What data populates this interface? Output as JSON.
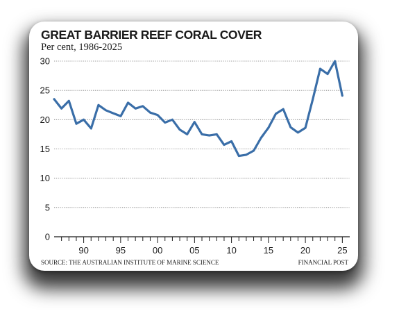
{
  "chart_data": {
    "type": "line",
    "title": "GREAT BARRIER REEF CORAL COVER",
    "subtitle": "Per cent, 1986-2025",
    "source": "SOURCE: THE AUSTRALIAN INSTITUTE OF MARINE SCIENCE",
    "credit": "FINANCIAL POST",
    "ylim": [
      0,
      30
    ],
    "yticks": [
      0,
      5,
      10,
      15,
      20,
      25,
      30
    ],
    "xlim": [
      1986,
      2026
    ],
    "xticks": [
      {
        "value": 1990,
        "label": "90"
      },
      {
        "value": 1995,
        "label": "95"
      },
      {
        "value": 2000,
        "label": "00"
      },
      {
        "value": 2005,
        "label": "05"
      },
      {
        "value": 2010,
        "label": "10"
      },
      {
        "value": 2015,
        "label": "15"
      },
      {
        "value": 2020,
        "label": "20"
      },
      {
        "value": 2025,
        "label": "25"
      }
    ],
    "grid": true,
    "color": "#3a6ea8",
    "series": [
      {
        "x": [
          1986,
          1987,
          1988,
          1989,
          1990,
          1991,
          1992,
          1993,
          1994,
          1995,
          1996,
          1997,
          1998,
          1999,
          2000,
          2001,
          2002,
          2003,
          2004,
          2005,
          2006,
          2007,
          2008,
          2009,
          2010,
          2011,
          2012,
          2013,
          2014,
          2015,
          2016,
          2017,
          2018,
          2019,
          2020,
          2021,
          2022,
          2023,
          2024,
          2025
        ],
        "values": [
          23.5,
          21.9,
          23.2,
          19.3,
          20.0,
          18.5,
          22.5,
          21.6,
          21.1,
          20.6,
          22.9,
          21.9,
          22.3,
          21.2,
          20.8,
          19.5,
          20.0,
          18.3,
          17.5,
          19.6,
          17.5,
          17.3,
          17.5,
          15.7,
          16.3,
          13.8,
          14.0,
          14.7,
          16.9,
          18.6,
          21.0,
          21.8,
          18.7,
          17.8,
          18.6,
          23.5,
          28.7,
          27.8,
          30.0,
          24.1
        ]
      }
    ]
  }
}
